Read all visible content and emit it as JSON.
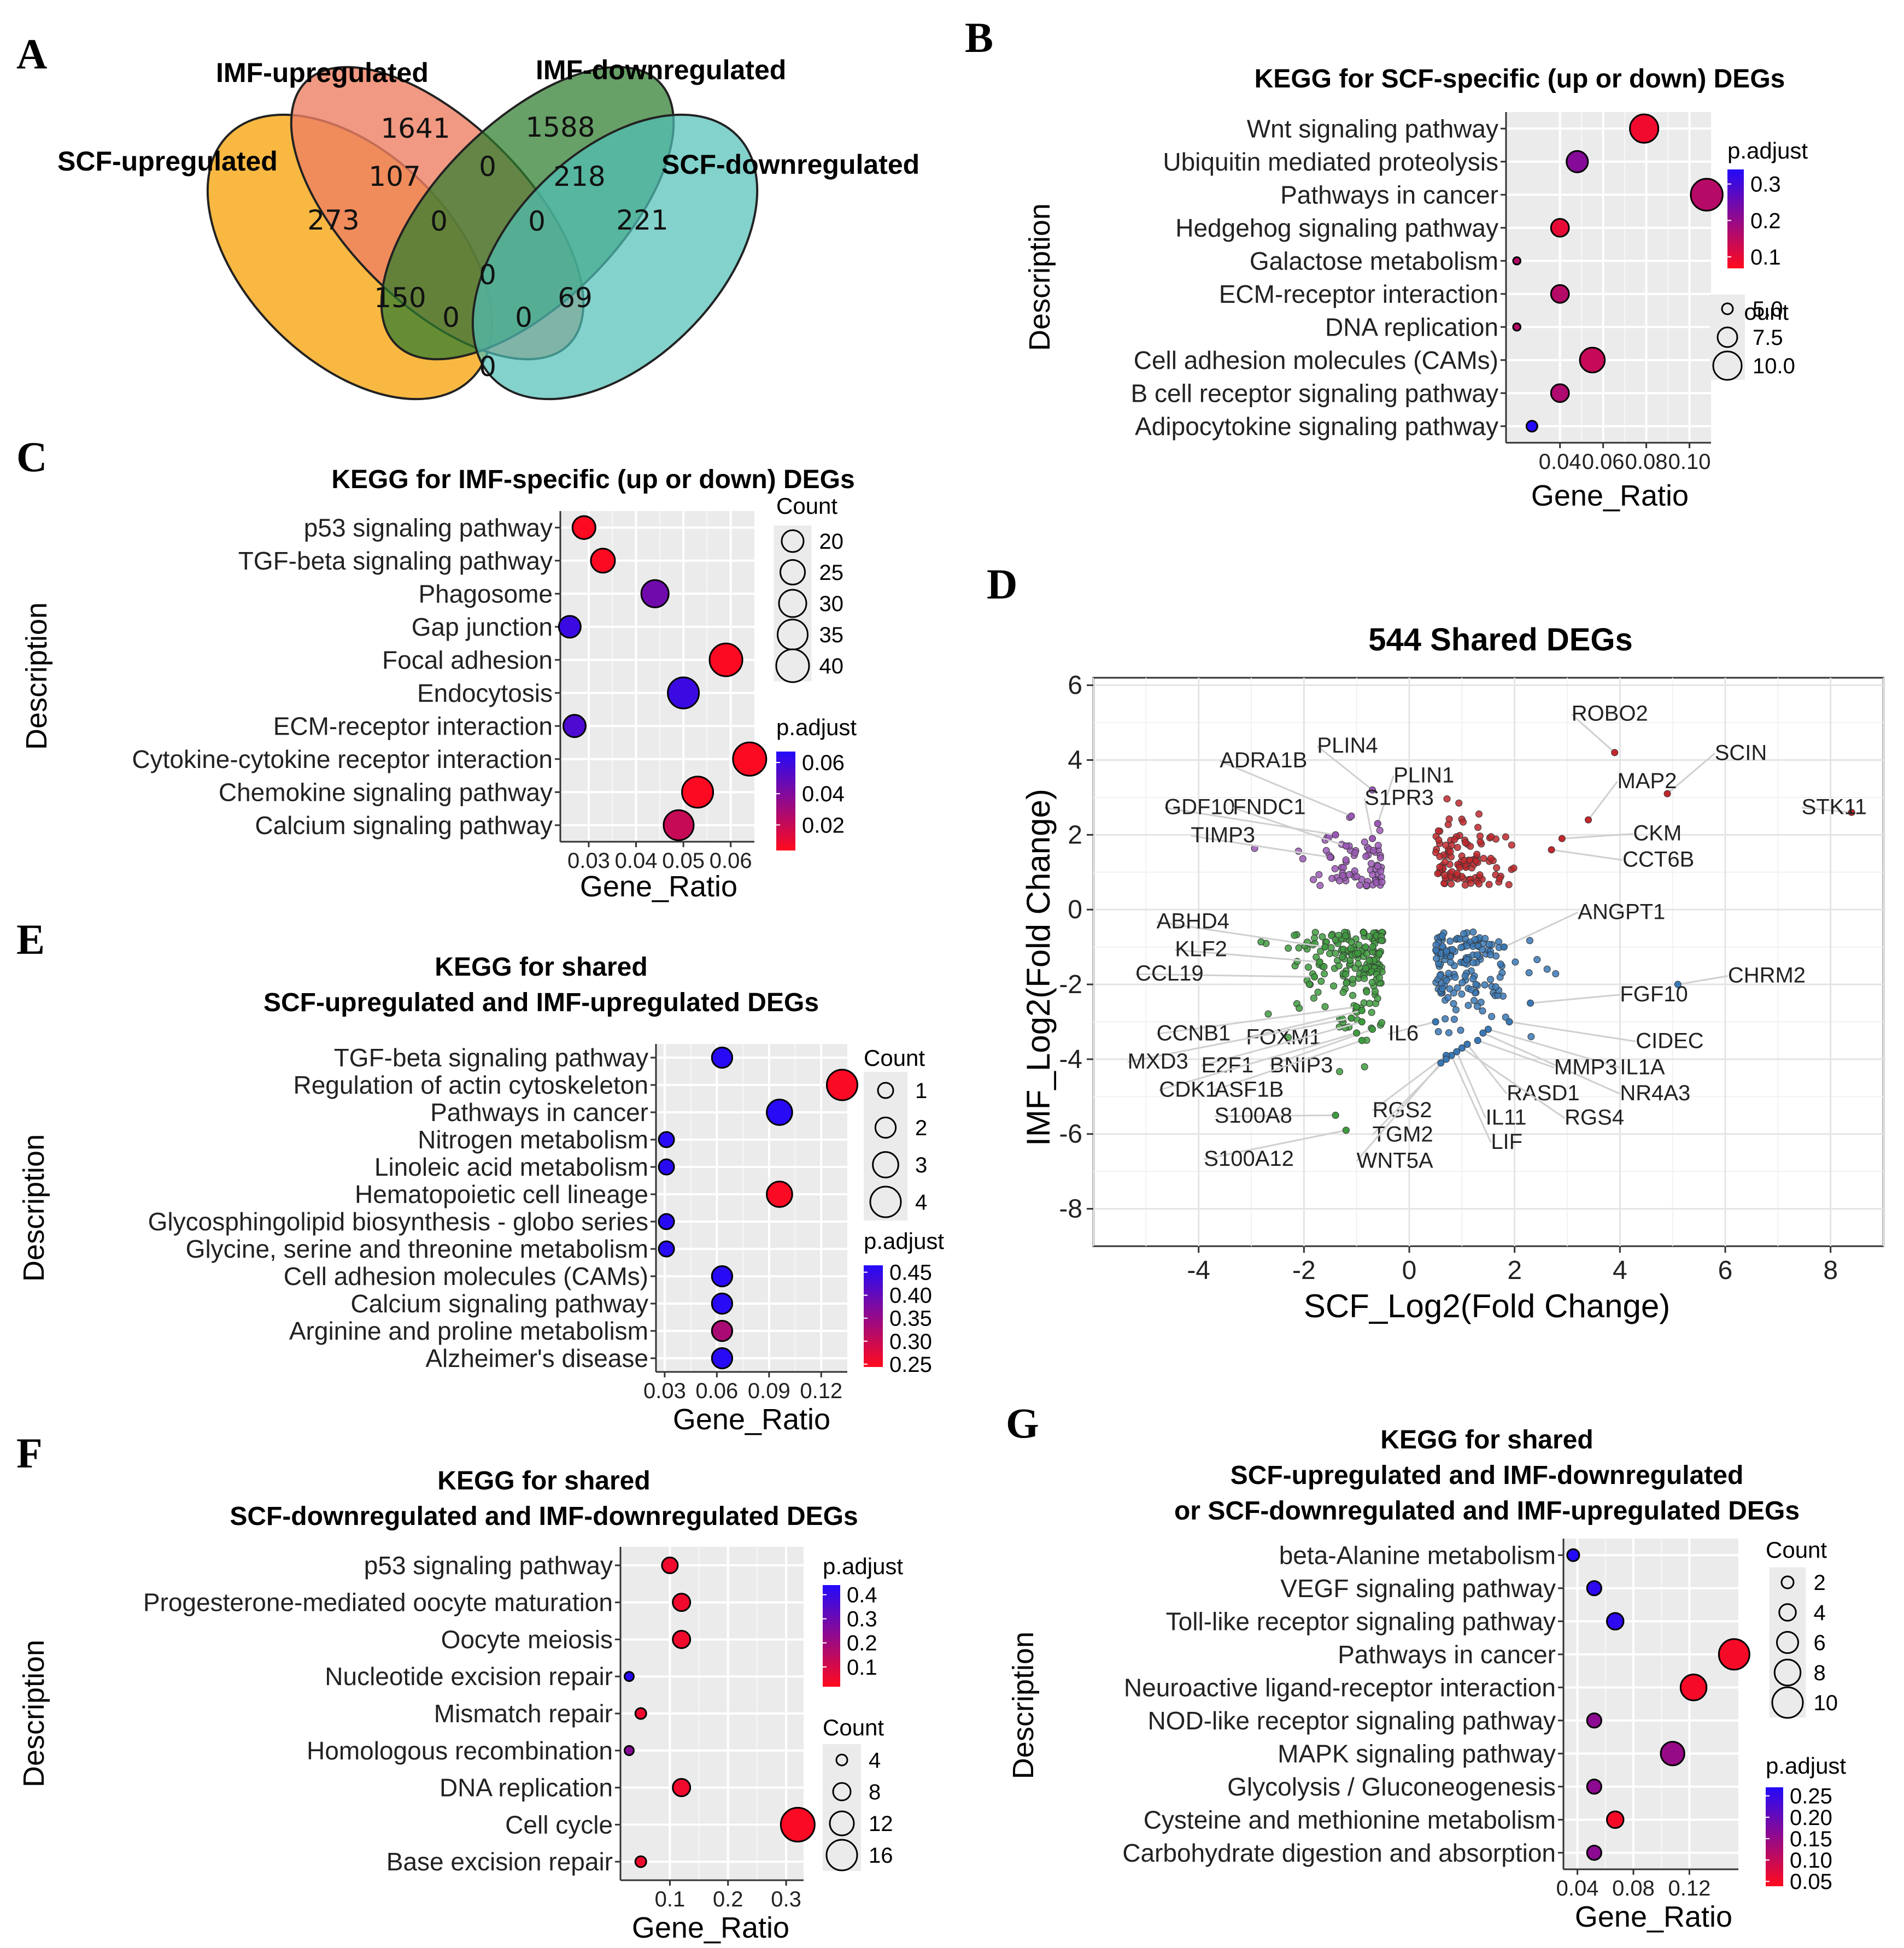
{
  "panel_labels": [
    "A",
    "B",
    "C",
    "D",
    "E",
    "F",
    "G"
  ],
  "venn": {
    "sets": [
      {
        "name": "SCF-upregulated",
        "color": "#f7b02d"
      },
      {
        "name": "IMF-upregulated",
        "color": "#ee7f63"
      },
      {
        "name": "IMF-downregulated",
        "color": "#2e7d2e"
      },
      {
        "name": "SCF-downregulated",
        "color": "#4fbfb6"
      }
    ],
    "counts": {
      "scf_up_only": "273",
      "imf_up_only": "1641",
      "imf_down_only": "1588",
      "scf_down_only": "221",
      "scfup_imfup": "107",
      "imfup_imfdown": "0",
      "imfdown_scfdown": "218",
      "scfup_imfdown": "150",
      "imfup_scfdown": "69",
      "scfup_scfdown": "0",
      "c_a": "0",
      "c_b": "0",
      "center": "0",
      "c_d": "0",
      "c_e": "0"
    }
  },
  "chart_data": [
    {
      "id": "B",
      "type": "scatter",
      "title": "KEGG for SCF-specific (up or down) DEGs",
      "xlabel": "Gene_Ratio",
      "ylabel": "Description",
      "xlim": [
        0.015,
        0.11
      ],
      "xticks": [
        0.04,
        0.06,
        0.08,
        0.1
      ],
      "xtick_labels": [
        "0.04",
        "0.06",
        "0.08",
        "0.10"
      ],
      "categories": [
        "Wnt signaling pathway",
        "Ubiquitin mediated proteolysis",
        "Pathways in cancer",
        "Hedgehog signaling pathway",
        "Galactose metabolism",
        "ECM-receptor interaction",
        "DNA replication",
        "Cell adhesion molecules (CAMs)",
        "B cell receptor signaling pathway",
        "Adipocytokine signaling pathway"
      ],
      "x": [
        0.079,
        0.048,
        0.108,
        0.04,
        0.02,
        0.04,
        0.02,
        0.055,
        0.04,
        0.027
      ],
      "count": [
        10,
        8,
        11,
        7,
        4,
        7,
        4,
        9,
        7,
        5
      ],
      "padj": [
        0.09,
        0.22,
        0.16,
        0.1,
        0.16,
        0.16,
        0.16,
        0.14,
        0.17,
        0.34
      ],
      "legend_color": {
        "title": "p.adjust",
        "ticks": [
          "0.3",
          "0.2",
          "0.1"
        ],
        "values": [
          0.3,
          0.2,
          0.1
        ],
        "min": 0.07,
        "max": 0.34
      },
      "legend_size": {
        "title": "Count",
        "labels": [
          "5.0",
          "7.5",
          "10.0"
        ],
        "values": [
          5,
          7.5,
          10
        ]
      }
    },
    {
      "id": "C",
      "type": "scatter",
      "title": "KEGG for IMF-specific (up or down) DEGs",
      "xlabel": "Gene_Ratio",
      "ylabel": "Description",
      "xlim": [
        0.024,
        0.065
      ],
      "xticks": [
        0.03,
        0.04,
        0.05,
        0.06
      ],
      "xtick_labels": [
        "0.03",
        "0.04",
        "0.05",
        "0.06"
      ],
      "categories": [
        "p53 signaling pathway",
        "TGF-beta signaling pathway",
        "Phagosome",
        "Gap junction",
        "Focal adhesion",
        "Endocytosis",
        "ECM-receptor interaction",
        "Cytokine-cytokine receptor interaction",
        "Chemokine signaling pathway",
        "Calcium signaling pathway"
      ],
      "x": [
        0.029,
        0.033,
        0.044,
        0.026,
        0.059,
        0.05,
        0.027,
        0.064,
        0.053,
        0.049
      ],
      "count": [
        22,
        24,
        30,
        20,
        40,
        37,
        21,
        41,
        37,
        35
      ],
      "padj": [
        0.005,
        0.005,
        0.045,
        0.06,
        0.005,
        0.06,
        0.055,
        0.005,
        0.005,
        0.02
      ],
      "legend_color": {
        "title": "p.adjust",
        "ticks": [
          "0.06",
          "0.04",
          "0.02"
        ],
        "values": [
          0.06,
          0.04,
          0.02
        ],
        "min": 0.004,
        "max": 0.067
      },
      "legend_size": {
        "title": "Count",
        "labels": [
          "20",
          "25",
          "30",
          "35",
          "40"
        ],
        "values": [
          20,
          25,
          30,
          35,
          40
        ]
      }
    },
    {
      "id": "D",
      "type": "scatter",
      "title": "544 Shared DEGs",
      "xlabel": "SCF_Log2(Fold Change)",
      "ylabel": "IMF_Log2(Fold Change)",
      "xlim": [
        -6,
        9
      ],
      "ylim": [
        -9,
        6.2
      ],
      "xticks": [
        -4,
        -2,
        0,
        2,
        4,
        6,
        8
      ],
      "yticks": [
        6,
        4,
        2,
        0,
        -2,
        -4,
        -6,
        -8
      ],
      "tick_labels_x": [
        "-4",
        "-2",
        "0",
        "2",
        "4",
        "6",
        "8"
      ],
      "tick_labels_y": [
        "6",
        "4",
        "2",
        "0",
        "-2",
        "-4",
        "-6",
        "-8"
      ],
      "quadrant_colors": {
        "up_up": "#c0282d",
        "down_up": "#9b59b6",
        "down_down": "#3f9b3f",
        "up_down": "#3a78b5"
      },
      "labels": [
        {
          "gene": "ROBO2",
          "x": 3.9,
          "y": 4.2,
          "lx": 3.08,
          "ly": 5.05
        },
        {
          "gene": "SCIN",
          "x": 4.9,
          "y": 3.1,
          "lx": 5.8,
          "ly": 4.0
        },
        {
          "gene": "MAP2",
          "x": 3.4,
          "y": 2.4,
          "lx": 3.95,
          "ly": 3.25
        },
        {
          "gene": "STK11",
          "x": 8.4,
          "y": 2.6,
          "lx": 7.45,
          "ly": 2.55
        },
        {
          "gene": "CKM",
          "x": 2.9,
          "y": 1.9,
          "lx": 4.25,
          "ly": 1.85
        },
        {
          "gene": "CCT6B",
          "x": 2.7,
          "y": 1.6,
          "lx": 4.05,
          "ly": 1.15
        },
        {
          "gene": "ADRA1B",
          "x": -1.1,
          "y": 2.5,
          "lx": -3.6,
          "ly": 3.8
        },
        {
          "gene": "PLIN4",
          "x": -0.7,
          "y": 3.2,
          "lx": -1.75,
          "ly": 4.2
        },
        {
          "gene": "PLIN1",
          "x": -0.6,
          "y": 2.3,
          "lx": -0.3,
          "ly": 3.4
        },
        {
          "gene": "S1PR3",
          "x": -0.7,
          "y": 1.9,
          "lx": -0.85,
          "ly": 2.8
        },
        {
          "gene": "GDF10",
          "x": -1.4,
          "y": 2.0,
          "lx": -4.65,
          "ly": 2.55
        },
        {
          "gene": "FNDC1",
          "x": -1.2,
          "y": 1.7,
          "lx": -3.35,
          "ly": 2.55
        },
        {
          "gene": "TIMP3",
          "x": -1.5,
          "y": 1.4,
          "lx": -4.15,
          "ly": 1.8
        },
        {
          "gene": "ANGPT1",
          "x": 1.8,
          "y": -1.0,
          "lx": 3.2,
          "ly": -0.25
        },
        {
          "gene": "CHRM2",
          "x": 5.1,
          "y": -2.0,
          "lx": 6.05,
          "ly": -1.95
        },
        {
          "gene": "FGF10",
          "x": 2.3,
          "y": -2.5,
          "lx": 4.0,
          "ly": -2.45
        },
        {
          "gene": "CIDEC",
          "x": 1.9,
          "y": -3.0,
          "lx": 4.3,
          "ly": -3.7
        },
        {
          "gene": "IL1A",
          "x": 1.5,
          "y": -3.2,
          "lx": 4.0,
          "ly": -4.4
        },
        {
          "gene": "NR4A3",
          "x": 1.4,
          "y": -3.3,
          "lx": 4.0,
          "ly": -5.1
        },
        {
          "gene": "MMP3",
          "x": 1.3,
          "y": -3.5,
          "lx": 2.75,
          "ly": -4.4
        },
        {
          "gene": "RASD1",
          "x": 1.1,
          "y": -3.6,
          "lx": 1.85,
          "ly": -5.1
        },
        {
          "gene": "RGS4",
          "x": 1.0,
          "y": -3.7,
          "lx": 2.95,
          "ly": -5.75
        },
        {
          "gene": "IL11",
          "x": 0.9,
          "y": -3.8,
          "lx": 1.45,
          "ly": -5.75
        },
        {
          "gene": "LIF",
          "x": 0.8,
          "y": -3.9,
          "lx": 1.55,
          "ly": -6.4
        },
        {
          "gene": "RGS2",
          "x": 0.7,
          "y": -3.9,
          "lx": -0.7,
          "ly": -5.55
        },
        {
          "gene": "TGM2",
          "x": 0.7,
          "y": -4.0,
          "lx": -0.7,
          "ly": -6.2
        },
        {
          "gene": "WNT5A",
          "x": 0.6,
          "y": -4.1,
          "lx": -1.0,
          "ly": -6.9
        },
        {
          "gene": "IL6",
          "x": 0.5,
          "y": -3.0,
          "lx": -0.4,
          "ly": -3.5
        },
        {
          "gene": "ABHD4",
          "x": -1.6,
          "y": -1.0,
          "lx": -4.8,
          "ly": -0.5
        },
        {
          "gene": "KLF2",
          "x": -1.7,
          "y": -1.4,
          "lx": -4.45,
          "ly": -1.25
        },
        {
          "gene": "CCL19",
          "x": -1.8,
          "y": -1.8,
          "lx": -5.2,
          "ly": -1.9
        },
        {
          "gene": "CCNB1",
          "x": -1.0,
          "y": -2.6,
          "lx": -4.8,
          "ly": -3.5
        },
        {
          "gene": "FOXM1",
          "x": -0.9,
          "y": -2.7,
          "lx": -3.1,
          "ly": -3.6
        },
        {
          "gene": "MXD3",
          "x": -1.1,
          "y": -2.9,
          "lx": -5.35,
          "ly": -4.25
        },
        {
          "gene": "E2F1",
          "x": -0.9,
          "y": -3.0,
          "lx": -3.95,
          "ly": -4.35
        },
        {
          "gene": "BNIP3",
          "x": -0.7,
          "y": -3.2,
          "lx": -2.65,
          "ly": -4.35
        },
        {
          "gene": "CDK1",
          "x": -1.0,
          "y": -3.3,
          "lx": -4.75,
          "ly": -5.0
        },
        {
          "gene": "ASF1B",
          "x": -0.9,
          "y": -3.5,
          "lx": -3.7,
          "ly": -5.0
        },
        {
          "gene": "S100A8",
          "x": -1.4,
          "y": -5.5,
          "lx": -3.7,
          "ly": -5.7
        },
        {
          "gene": "S100A12",
          "x": -1.2,
          "y": -5.9,
          "lx": -3.9,
          "ly": -6.85
        }
      ]
    },
    {
      "id": "E",
      "type": "scatter",
      "title": "KEGG for shared",
      "subtitle": "SCF-upregulated and IMF-upregulated DEGs",
      "xlabel": "Gene_Ratio",
      "ylabel": "Description",
      "xlim": [
        0.025,
        0.135
      ],
      "xticks": [
        0.03,
        0.06,
        0.09,
        0.12
      ],
      "xtick_labels": [
        "0.03",
        "0.06",
        "0.09",
        "0.12"
      ],
      "categories": [
        "TGF-beta signaling pathway",
        "Regulation of actin cytoskeleton",
        "Pathways in cancer",
        "Nitrogen metabolism",
        "Linoleic acid metabolism",
        "Hematopoietic cell lineage",
        "Glycosphingolipid biosynthesis - globo series",
        "Glycine, serine and threonine metabolism",
        "Cell adhesion molecules (CAMs)",
        "Calcium signaling pathway",
        "Arginine and proline metabolism",
        "Alzheimer's disease"
      ],
      "x": [
        0.063,
        0.132,
        0.096,
        0.031,
        0.031,
        0.096,
        0.031,
        0.031,
        0.063,
        0.063,
        0.063,
        0.063
      ],
      "count": [
        2,
        4,
        3,
        1,
        1,
        3,
        1,
        1,
        2,
        2,
        2,
        2
      ],
      "padj": [
        0.46,
        0.25,
        0.46,
        0.46,
        0.46,
        0.25,
        0.46,
        0.46,
        0.46,
        0.46,
        0.33,
        0.46
      ],
      "legend_color": {
        "title": "p.adjust",
        "ticks": [
          "0.45",
          "0.40",
          "0.35",
          "0.30",
          "0.25"
        ],
        "values": [
          0.45,
          0.4,
          0.35,
          0.3,
          0.25
        ],
        "min": 0.245,
        "max": 0.465
      },
      "legend_size": {
        "title": "Count",
        "labels": [
          "1",
          "2",
          "3",
          "4"
        ],
        "values": [
          1,
          2,
          3,
          4
        ]
      }
    },
    {
      "id": "F",
      "type": "scatter",
      "title": "KEGG for shared",
      "subtitle": "SCF-downregulated and IMF-downregulated DEGs",
      "xlabel": "Gene_Ratio",
      "ylabel": "Description",
      "xlim": [
        0.015,
        0.33
      ],
      "xticks": [
        0.1,
        0.2,
        0.3
      ],
      "xtick_labels": [
        "0.1",
        "0.2",
        "0.3"
      ],
      "categories": [
        "p53 signaling pathway",
        "Progesterone-mediated oocyte maturation",
        "Oocyte meiosis",
        "Nucleotide excision repair",
        "Mismatch repair",
        "Homologous recombination",
        "DNA replication",
        "Cell cycle",
        "Base excision repair"
      ],
      "x": [
        0.1,
        0.12,
        0.12,
        0.03,
        0.05,
        0.03,
        0.12,
        0.32,
        0.05
      ],
      "count": [
        7,
        8,
        8,
        3,
        4,
        3,
        8,
        18,
        4
      ],
      "padj": [
        0.05,
        0.05,
        0.05,
        0.43,
        0.05,
        0.25,
        0.05,
        0.03,
        0.05
      ],
      "legend_color": {
        "title": "p.adjust",
        "ticks": [
          "0.4",
          "0.3",
          "0.2",
          "0.1"
        ],
        "values": [
          0.4,
          0.3,
          0.2,
          0.1
        ],
        "min": 0.02,
        "max": 0.44
      },
      "legend_size": {
        "title": "Count",
        "labels": [
          "4",
          "8",
          "12",
          "16"
        ],
        "values": [
          4,
          8,
          12,
          16
        ]
      }
    },
    {
      "id": "G",
      "type": "scatter",
      "title": "KEGG for shared",
      "subtitle": "SCF-upregulated and IMF-downregulated",
      "subtitle2": "or SCF-downregulated and IMF-upregulated DEGs",
      "xlabel": "Gene_Ratio",
      "ylabel": "Description",
      "xlim": [
        0.03,
        0.155
      ],
      "xticks": [
        0.04,
        0.08,
        0.12
      ],
      "xtick_labels": [
        "0.04",
        "0.08",
        "0.12"
      ],
      "categories": [
        "beta-Alanine metabolism",
        "VEGF signaling pathway",
        "Toll-like receptor signaling pathway",
        "Pathways in cancer",
        "Neuroactive ligand-receptor interaction",
        "NOD-like receptor signaling pathway",
        "MAPK signaling pathway",
        "Glycolysis / Gluconeogenesis",
        "Cysteine and methionine metabolism",
        "Carbohydrate digestion and absorption"
      ],
      "x": [
        0.037,
        0.052,
        0.067,
        0.152,
        0.123,
        0.052,
        0.108,
        0.052,
        0.067,
        0.052
      ],
      "count": [
        2,
        3,
        4,
        10,
        8,
        3,
        7,
        3,
        4,
        3
      ],
      "padj": [
        0.27,
        0.26,
        0.26,
        0.05,
        0.05,
        0.16,
        0.15,
        0.16,
        0.05,
        0.16
      ],
      "legend_color": {
        "title": "p.adjust",
        "ticks": [
          "0.25",
          "0.20",
          "0.15",
          "0.10",
          "0.05"
        ],
        "values": [
          0.25,
          0.2,
          0.15,
          0.1,
          0.05
        ],
        "min": 0.04,
        "max": 0.27
      },
      "legend_size": {
        "title": "Count",
        "labels": [
          "2",
          "4",
          "6",
          "8",
          "10"
        ],
        "values": [
          2,
          4,
          6,
          8,
          10
        ]
      }
    }
  ]
}
